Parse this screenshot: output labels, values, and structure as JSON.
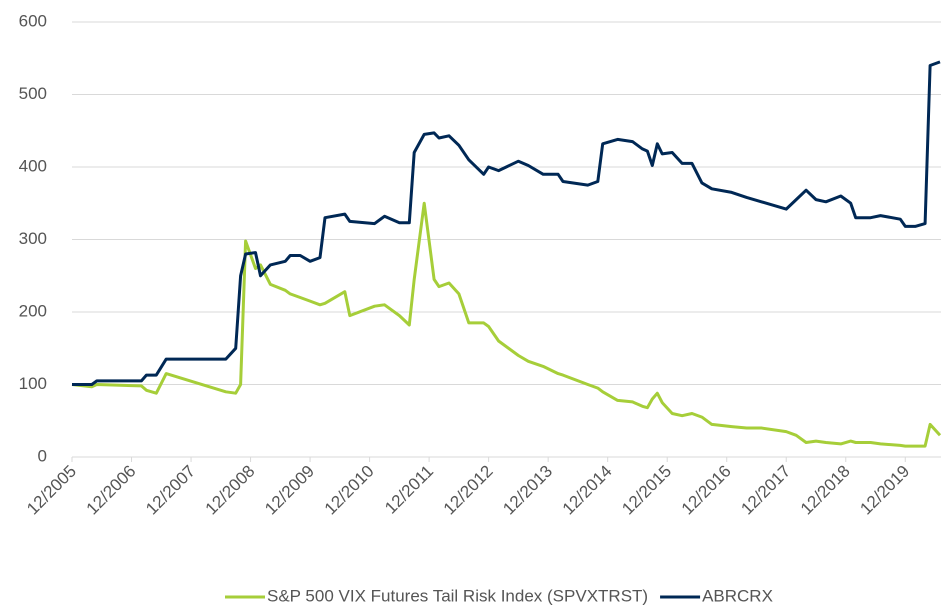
{
  "chart_data": {
    "type": "line",
    "x": [
      "12/2005",
      "04/2006",
      "05/2006",
      "02/2007",
      "03/2007",
      "05/2007",
      "07/2007",
      "07/2008",
      "09/2008",
      "10/2008",
      "11/2008",
      "01/2009",
      "02/2009",
      "04/2009",
      "07/2009",
      "08/2009",
      "10/2009",
      "12/2009",
      "02/2010",
      "03/2010",
      "07/2010",
      "08/2010",
      "01/2011",
      "03/2011",
      "06/2011",
      "08/2011",
      "09/2011",
      "11/2011",
      "01/2012",
      "02/2012",
      "04/2012",
      "06/2012",
      "08/2012",
      "11/2012",
      "12/2012",
      "02/2013",
      "06/2013",
      "08/2013",
      "11/2013",
      "02/2014",
      "03/2014",
      "08/2014",
      "10/2014",
      "11/2014",
      "02/2015",
      "05/2015",
      "07/2015",
      "08/2015",
      "09/2015",
      "10/2015",
      "11/2015",
      "01/2016",
      "03/2016",
      "05/2016",
      "07/2016",
      "09/2016",
      "01/2017",
      "04/2017",
      "07/2017",
      "12/2017",
      "02/2018",
      "04/2018",
      "06/2018",
      "08/2018",
      "11/2018",
      "01/2019",
      "02/2019",
      "05/2019",
      "07/2019",
      "11/2019",
      "12/2019",
      "02/2020",
      "04/2020",
      "05/2020",
      "07/2020"
    ],
    "series": [
      {
        "name": "S&P 500 VIX Futures Tail Risk Index (SPVXTRST)",
        "color": "#a6ce39",
        "values": [
          100,
          97,
          100,
          98,
          92,
          88,
          115,
          90,
          88,
          100,
          298,
          260,
          265,
          238,
          230,
          225,
          220,
          215,
          210,
          212,
          228,
          195,
          208,
          210,
          195,
          182,
          245,
          350,
          245,
          235,
          240,
          225,
          185,
          185,
          180,
          160,
          140,
          132,
          125,
          115,
          113,
          100,
          95,
          90,
          78,
          76,
          70,
          68,
          80,
          88,
          75,
          60,
          57,
          60,
          55,
          45,
          42,
          40,
          40,
          35,
          30,
          20,
          22,
          20,
          18,
          22,
          20,
          20,
          18,
          16,
          15,
          15,
          15,
          45,
          30
        ]
      },
      {
        "name": "ABRCRX",
        "color": "#002855",
        "values": [
          100,
          100,
          105,
          105,
          113,
          113,
          135,
          135,
          150,
          250,
          280,
          282,
          250,
          265,
          270,
          278,
          278,
          270,
          275,
          330,
          335,
          325,
          322,
          332,
          323,
          323,
          420,
          445,
          447,
          440,
          443,
          430,
          410,
          390,
          400,
          395,
          408,
          402,
          390,
          390,
          380,
          375,
          380,
          432,
          438,
          435,
          425,
          422,
          402,
          432,
          418,
          420,
          405,
          405,
          378,
          370,
          365,
          358,
          352,
          342,
          355,
          368,
          355,
          352,
          360,
          350,
          330,
          330,
          333,
          328,
          318,
          318,
          322,
          540,
          545
        ]
      }
    ],
    "xlim": [
      "12/2005",
      "07/2020"
    ],
    "xticks": [
      "12/2005",
      "12/2006",
      "12/2007",
      "12/2008",
      "12/2009",
      "12/2010",
      "12/2011",
      "12/2012",
      "12/2013",
      "12/2014",
      "12/2015",
      "12/2016",
      "12/2017",
      "12/2018",
      "12/2019"
    ],
    "ylim": [
      0,
      600
    ],
    "yticks": [
      0,
      100,
      200,
      300,
      400,
      500,
      600
    ],
    "grid": true,
    "legend": "bottom"
  }
}
